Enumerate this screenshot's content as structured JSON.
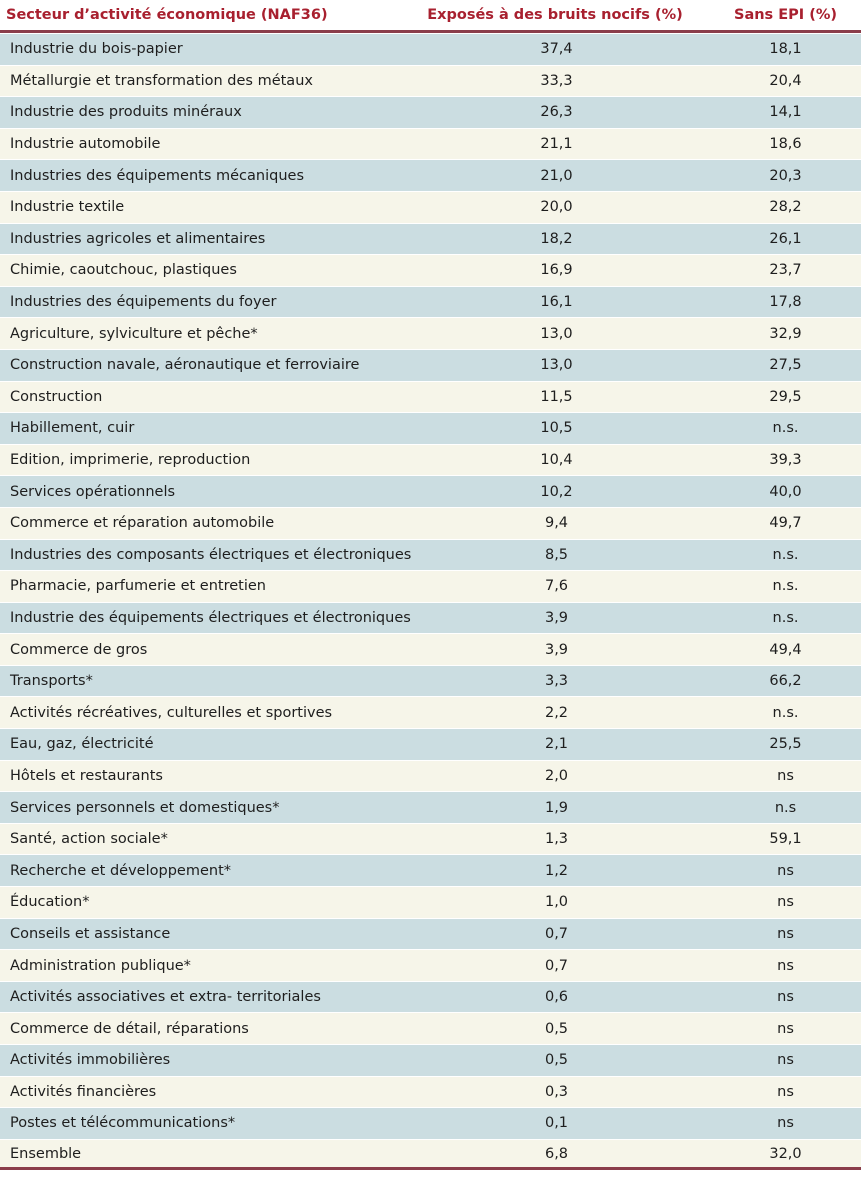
{
  "header": {
    "col_sector": "Secteur d’activité économique (NAF36)",
    "col_exposed": "Exposés à des bruits nocifs (%)",
    "col_no_ppe": "Sans EPI (%)"
  },
  "rows": [
    {
      "sector": "Industrie du bois-papier",
      "exposed": "37,4",
      "no_ppe": "18,1"
    },
    {
      "sector": "Métallurgie et transformation des métaux",
      "exposed": "33,3",
      "no_ppe": "20,4"
    },
    {
      "sector": "Industrie des produits minéraux",
      "exposed": "26,3",
      "no_ppe": "14,1"
    },
    {
      "sector": "Industrie automobile",
      "exposed": "21,1",
      "no_ppe": "18,6"
    },
    {
      "sector": "Industries des équipements mécaniques",
      "exposed": "21,0",
      "no_ppe": "20,3"
    },
    {
      "sector": "Industrie textile",
      "exposed": "20,0",
      "no_ppe": "28,2"
    },
    {
      "sector": "Industries agricoles et alimentaires",
      "exposed": "18,2",
      "no_ppe": "26,1"
    },
    {
      "sector": "Chimie, caoutchouc, plastiques",
      "exposed": "16,9",
      "no_ppe": "23,7"
    },
    {
      "sector": "Industries des équipements du foyer",
      "exposed": "16,1",
      "no_ppe": "17,8"
    },
    {
      "sector": "Agriculture, sylviculture et pêche*",
      "exposed": "13,0",
      "no_ppe": "32,9"
    },
    {
      "sector": "Construction navale, aéronautique et ferroviaire",
      "exposed": "13,0",
      "no_ppe": "27,5"
    },
    {
      "sector": "Construction",
      "exposed": "11,5",
      "no_ppe": "29,5"
    },
    {
      "sector": "Habillement, cuir",
      "exposed": "10,5",
      "no_ppe": "n.s."
    },
    {
      "sector": "Edition, imprimerie, reproduction",
      "exposed": "10,4",
      "no_ppe": "39,3"
    },
    {
      "sector": "Services opérationnels",
      "exposed": "10,2",
      "no_ppe": "40,0"
    },
    {
      "sector": "Commerce et réparation automobile",
      "exposed": "9,4",
      "no_ppe": "49,7"
    },
    {
      "sector": "Industries des composants électriques et électroniques",
      "exposed": "8,5",
      "no_ppe": "n.s."
    },
    {
      "sector": "Pharmacie, parfumerie et entretien",
      "exposed": "7,6",
      "no_ppe": "n.s."
    },
    {
      "sector": "Industrie des équipements électriques et électroniques",
      "exposed": "3,9",
      "no_ppe": "n.s."
    },
    {
      "sector": "Commerce de gros",
      "exposed": "3,9",
      "no_ppe": "49,4"
    },
    {
      "sector": "Transports*",
      "exposed": "3,3",
      "no_ppe": "66,2"
    },
    {
      "sector": "Activités récréatives, culturelles et sportives",
      "exposed": "2,2",
      "no_ppe": "n.s."
    },
    {
      "sector": "Eau, gaz, électricité",
      "exposed": "2,1",
      "no_ppe": "25,5"
    },
    {
      "sector": "Hôtels et restaurants",
      "exposed": "2,0",
      "no_ppe": "ns"
    },
    {
      "sector": "Services personnels et domestiques*",
      "exposed": "1,9",
      "no_ppe": "n.s"
    },
    {
      "sector": "Santé, action sociale*",
      "exposed": "1,3",
      "no_ppe": "59,1"
    },
    {
      "sector": "Recherche et développement*",
      "exposed": "1,2",
      "no_ppe": "ns"
    },
    {
      "sector": "Éducation*",
      "exposed": "1,0",
      "no_ppe": "ns"
    },
    {
      "sector": "Conseils et assistance",
      "exposed": "0,7",
      "no_ppe": "ns"
    },
    {
      "sector": "Administration publique*",
      "exposed": "0,7",
      "no_ppe": "ns"
    },
    {
      "sector": "Activités associatives et extra- territoriales",
      "exposed": "0,6",
      "no_ppe": "ns"
    },
    {
      "sector": "Commerce de détail, réparations",
      "exposed": "0,5",
      "no_ppe": "ns"
    },
    {
      "sector": "Activités immobilières",
      "exposed": "0,5",
      "no_ppe": "ns"
    },
    {
      "sector": "Activités financières",
      "exposed": "0,3",
      "no_ppe": "ns"
    },
    {
      "sector": "Postes et télécommunications*",
      "exposed": "0,1",
      "no_ppe": "ns"
    }
  ],
  "total": {
    "sector": "Ensemble",
    "exposed": "6,8",
    "no_ppe": "32,0"
  }
}
